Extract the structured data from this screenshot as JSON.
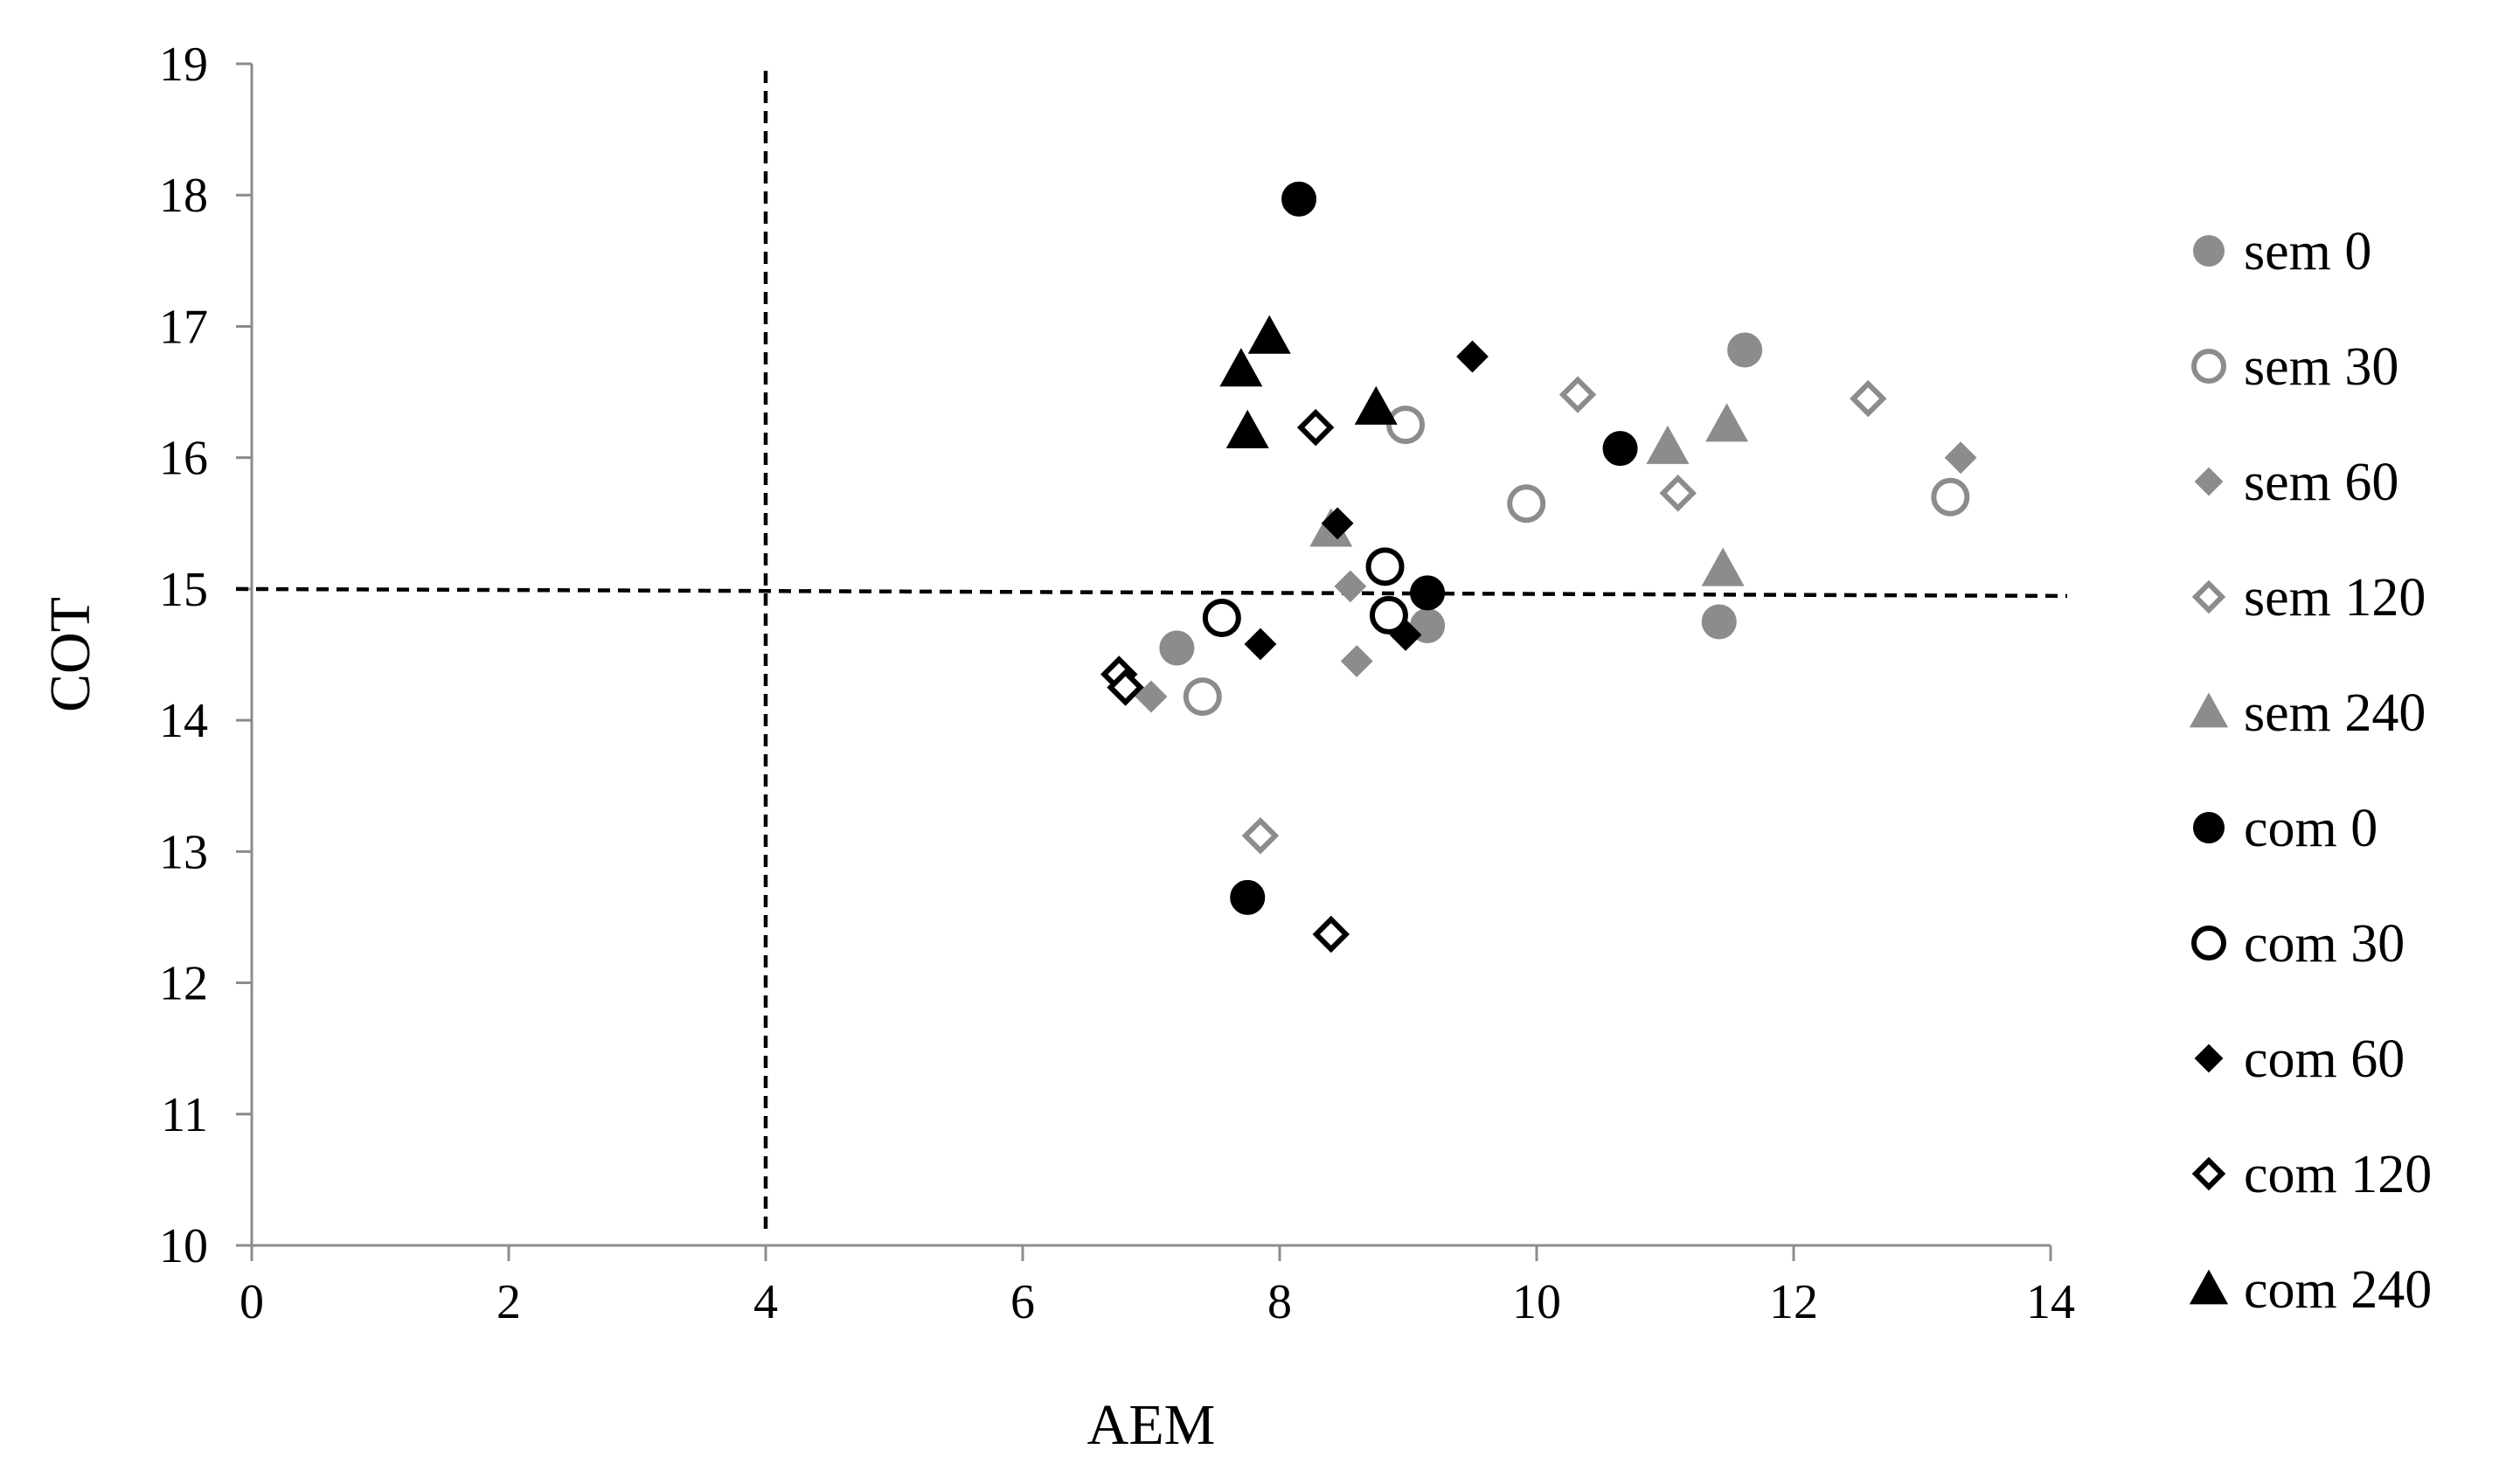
{
  "chart_data": {
    "type": "scatter",
    "title": "",
    "xlabel": "AEM",
    "ylabel": "COT",
    "xlim": [
      0,
      14
    ],
    "ylim": [
      10,
      19
    ],
    "xticks": [
      0,
      2,
      4,
      6,
      8,
      10,
      12,
      14
    ],
    "yticks": [
      10,
      11,
      12,
      13,
      14,
      15,
      16,
      17,
      18,
      19
    ],
    "grid": false,
    "legend_position": "right",
    "reference_lines": [
      {
        "orientation": "vertical",
        "x": 4,
        "style": "dashed",
        "color": "#000000"
      },
      {
        "orientation": "horizontal",
        "y": 15,
        "style": "dashed",
        "color": "#000000"
      }
    ],
    "series": [
      {
        "name": "sem 0",
        "marker": "circle",
        "filled": true,
        "color": "#8c8c8c",
        "points": [
          [
            7.2,
            14.55
          ],
          [
            9.15,
            14.72
          ],
          [
            11.42,
            14.75
          ],
          [
            11.62,
            16.82
          ]
        ]
      },
      {
        "name": "sem 30",
        "marker": "circle",
        "filled": false,
        "color": "#8c8c8c",
        "points": [
          [
            7.4,
            14.18
          ],
          [
            8.98,
            16.25
          ],
          [
            9.92,
            15.65
          ],
          [
            13.22,
            15.7
          ]
        ]
      },
      {
        "name": "sem 60",
        "marker": "diamond",
        "filled": true,
        "color": "#8c8c8c",
        "points": [
          [
            7.0,
            14.18
          ],
          [
            8.55,
            15.02
          ],
          [
            8.6,
            14.45
          ],
          [
            13.3,
            16.0
          ]
        ]
      },
      {
        "name": "sem 120",
        "marker": "diamond",
        "filled": false,
        "color": "#8c8c8c",
        "points": [
          [
            7.85,
            13.12
          ],
          [
            10.32,
            16.48
          ],
          [
            11.1,
            15.73
          ],
          [
            12.58,
            16.45
          ]
        ]
      },
      {
        "name": "sem 240",
        "marker": "triangle",
        "filled": true,
        "color": "#8c8c8c",
        "points": [
          [
            8.4,
            15.45
          ],
          [
            11.02,
            16.08
          ],
          [
            11.45,
            15.15
          ],
          [
            11.48,
            16.25
          ]
        ]
      },
      {
        "name": "com 0",
        "marker": "circle",
        "filled": true,
        "color": "#000000",
        "points": [
          [
            7.75,
            12.65
          ],
          [
            8.15,
            17.97
          ],
          [
            9.15,
            14.97
          ],
          [
            10.65,
            16.07
          ]
        ]
      },
      {
        "name": "com 30",
        "marker": "circle",
        "filled": false,
        "color": "#000000",
        "points": [
          [
            7.55,
            14.78
          ],
          [
            8.82,
            15.17
          ],
          [
            8.85,
            14.8
          ]
        ]
      },
      {
        "name": "com 60",
        "marker": "diamond",
        "filled": true,
        "color": "#000000",
        "points": [
          [
            7.85,
            14.58
          ],
          [
            8.45,
            15.5
          ],
          [
            8.98,
            14.65
          ],
          [
            9.5,
            16.77
          ]
        ]
      },
      {
        "name": "com 120",
        "marker": "diamond",
        "filled": false,
        "color": "#000000",
        "points": [
          [
            6.75,
            14.35
          ],
          [
            6.8,
            14.25
          ],
          [
            8.28,
            16.23
          ],
          [
            8.4,
            12.37
          ]
        ]
      },
      {
        "name": "com 240",
        "marker": "triangle",
        "filled": true,
        "color": "#000000",
        "points": [
          [
            7.7,
            16.67
          ],
          [
            7.75,
            16.2
          ],
          [
            7.92,
            16.92
          ],
          [
            8.75,
            16.38
          ]
        ]
      }
    ]
  }
}
